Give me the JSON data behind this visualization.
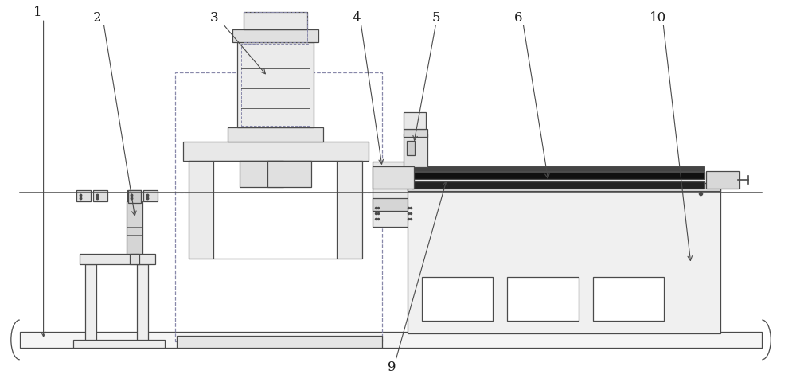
{
  "fig_width": 10.0,
  "fig_height": 4.81,
  "dpi": 100,
  "line_color": "#4a4a4a",
  "dashed_color": "#8888aa",
  "bg_color": "#ffffff",
  "label_fontsize": 12,
  "label_color": "#1a1a1a"
}
